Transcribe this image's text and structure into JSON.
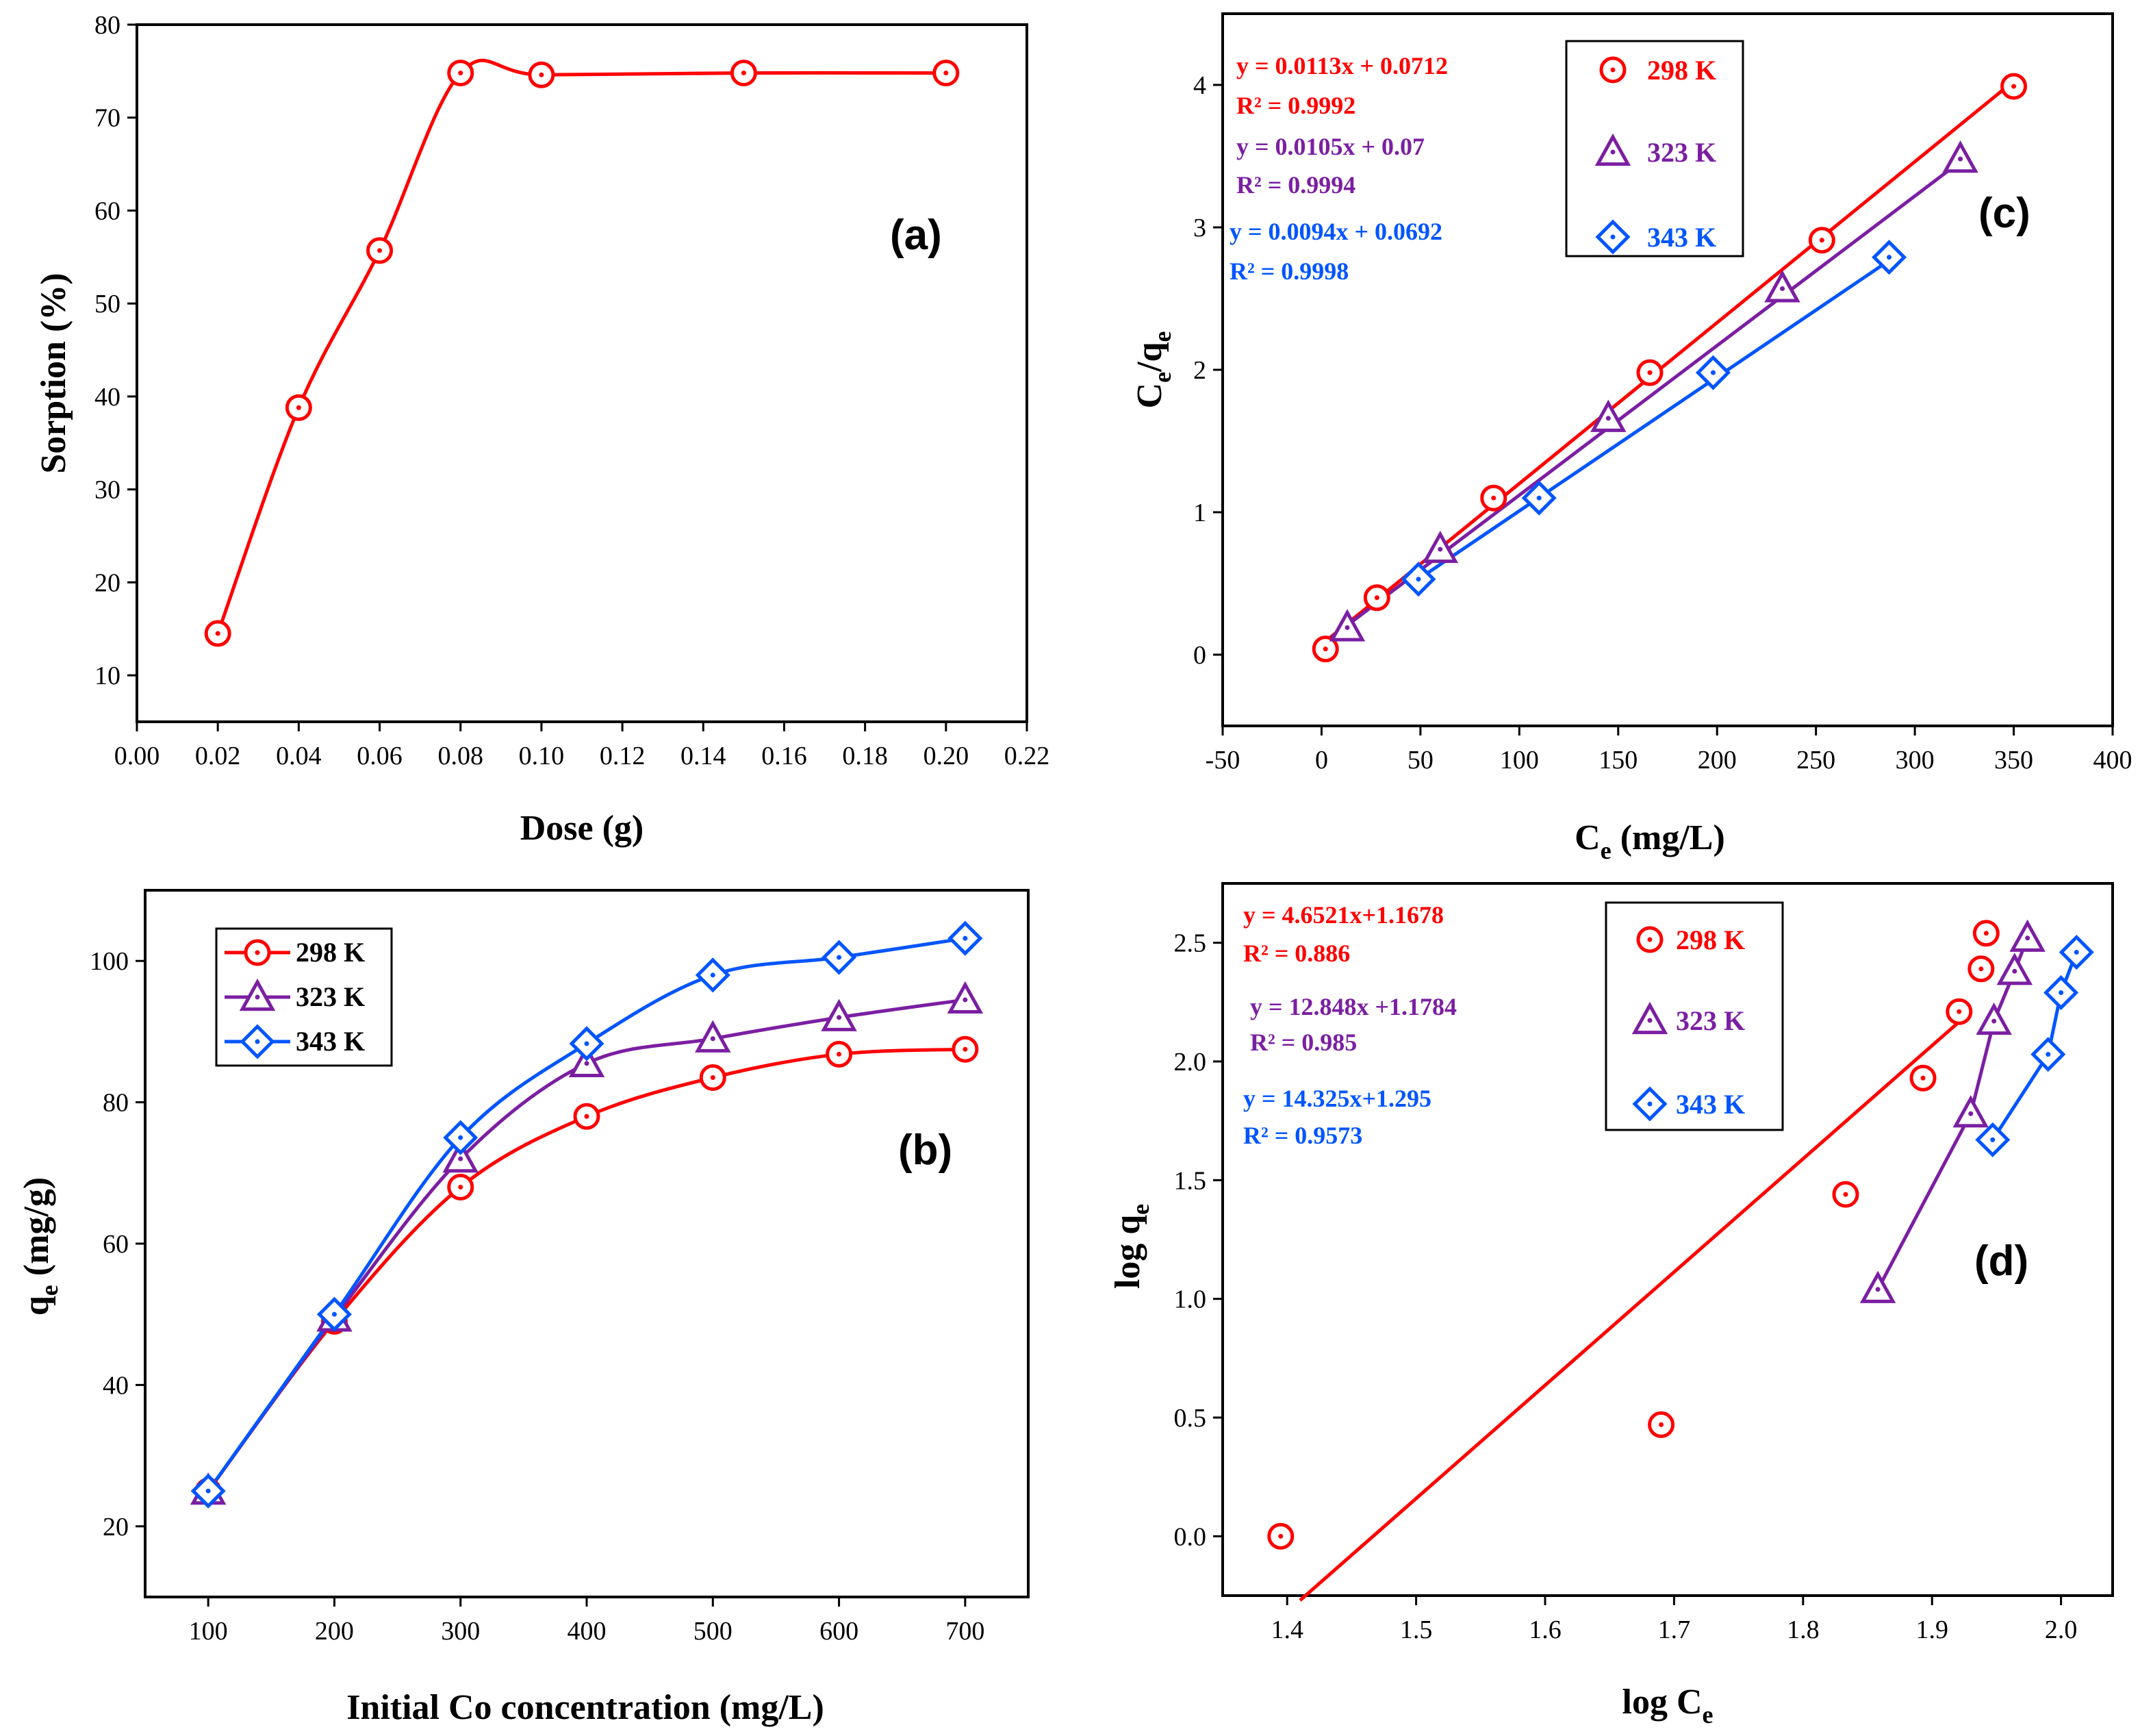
{
  "chart_data": [
    {
      "panel": "a",
      "type": "line",
      "panel_label": "(a)",
      "xlabel": "Dose (g)",
      "ylabel": "Sorption (%)",
      "xlim": [
        0.0,
        0.22
      ],
      "ylim": [
        5,
        80
      ],
      "x_ticks": [
        "0.00",
        "0.02",
        "0.04",
        "0.06",
        "0.08",
        "0.10",
        "0.12",
        "0.14",
        "0.16",
        "0.18",
        "0.20",
        "0.22"
      ],
      "y_ticks": [
        "10",
        "20",
        "30",
        "40",
        "50",
        "60",
        "70",
        "80"
      ],
      "color": "#ff0000",
      "series": [
        {
          "name": "Sorption",
          "x": [
            0.02,
            0.04,
            0.06,
            0.08,
            0.1,
            0.15,
            0.2
          ],
          "y": [
            14.5,
            38.8,
            55.7,
            74.8,
            74.6,
            74.8,
            74.8
          ]
        }
      ]
    },
    {
      "panel": "b",
      "type": "line",
      "panel_label": "(b)",
      "xlabel": "Initial Co concentration (mg/L)",
      "ylabel_main": "q",
      "ylabel_sub": "e",
      "ylabel_rest": " (mg/g)",
      "xlim": [
        50,
        750
      ],
      "ylim": [
        10,
        110
      ],
      "x_ticks": [
        "100",
        "200",
        "300",
        "400",
        "500",
        "600",
        "700"
      ],
      "y_ticks": [
        "20",
        "40",
        "60",
        "80",
        "100"
      ],
      "series": [
        {
          "name": "298 K",
          "marker": "circle",
          "color": "#ff0000",
          "x": [
            100,
            200,
            300,
            400,
            500,
            600,
            700
          ],
          "y": [
            25,
            49,
            68,
            78,
            83.5,
            86.8,
            87.5
          ]
        },
        {
          "name": "323 K",
          "marker": "triangle",
          "color": "#7b1fa2",
          "x": [
            100,
            200,
            300,
            400,
            500,
            600,
            700
          ],
          "y": [
            25,
            49.5,
            72,
            85.5,
            89,
            92,
            94.5
          ]
        },
        {
          "name": "343 K",
          "marker": "diamond",
          "color": "#0055ff",
          "x": [
            100,
            200,
            300,
            400,
            500,
            600,
            700
          ],
          "y": [
            25,
            50,
            75,
            88.3,
            98,
            100.5,
            103.2
          ]
        }
      ]
    },
    {
      "panel": "c",
      "type": "scatter",
      "panel_label": "(c)",
      "xlabel_main": "C",
      "xlabel_sub": "e",
      "xlabel_rest": " (mg/L)",
      "ylabel_main": "C",
      "ylabel_sub1": "e",
      "ylabel_mid": "/q",
      "ylabel_sub2": "e",
      "xlim": [
        -50,
        400
      ],
      "ylim": [
        -0.5,
        4.5
      ],
      "x_ticks": [
        "-50",
        "0",
        "50",
        "100",
        "150",
        "200",
        "250",
        "300",
        "350",
        "400"
      ],
      "y_ticks": [
        "0",
        "1",
        "2",
        "3",
        "4"
      ],
      "series": [
        {
          "name": "298 K",
          "marker": "circle",
          "color": "#ff0000",
          "equation": "y = 0.0113x + 0.0712",
          "r2": "R² = 0.9992",
          "x": [
            2,
            28,
            87,
            166,
            253,
            350
          ],
          "y": [
            0.04,
            0.4,
            1.1,
            1.98,
            2.91,
            3.99
          ],
          "fit": {
            "slope": 0.0113,
            "intercept": 0.0712,
            "xrange": [
              0,
              350
            ]
          }
        },
        {
          "name": "323 K",
          "marker": "triangle",
          "color": "#7b1fa2",
          "equation": "y = 0.0105x + 0.07",
          "r2": "R² = 0.9994",
          "x": [
            13,
            60,
            145,
            233,
            323
          ],
          "y": [
            0.19,
            0.74,
            1.66,
            2.57,
            3.48
          ],
          "fit": {
            "slope": 0.0105,
            "intercept": 0.07,
            "xrange": [
              0,
              323
            ]
          }
        },
        {
          "name": "343 K",
          "marker": "diamond",
          "color": "#0055ff",
          "equation": "y = 0.0094x + 0.0692",
          "r2": "R² = 0.9998",
          "x": [
            49,
            110,
            198,
            287
          ],
          "y": [
            0.53,
            1.1,
            1.98,
            2.79
          ],
          "fit": {
            "slope": 0.0094,
            "intercept": 0.0692,
            "xrange": [
              49,
              287
            ]
          }
        }
      ]
    },
    {
      "panel": "d",
      "type": "scatter",
      "panel_label": "(d)",
      "xlabel_main": "log C",
      "xlabel_sub": "e",
      "ylabel_main": "log q",
      "ylabel_sub": "e",
      "xlim": [
        1.35,
        2.04
      ],
      "ylim": [
        -0.25,
        2.75
      ],
      "x_ticks": [
        "1.4",
        "1.5",
        "1.6",
        "1.7",
        "1.8",
        "1.9",
        "2.0"
      ],
      "y_ticks": [
        "0.0",
        "0.5",
        "1.0",
        "1.5",
        "2.0",
        "2.5"
      ],
      "series": [
        {
          "name": "298 K",
          "marker": "circle",
          "color": "#ff0000",
          "equation": "y = 4.6521x+1.1678",
          "r2": "R² = 0.886",
          "x": [
            1.395,
            1.69,
            1.833,
            1.893,
            1.921,
            1.938,
            1.942
          ],
          "y": [
            0.0,
            0.47,
            1.44,
            1.93,
            2.21,
            2.39,
            2.54
          ],
          "fit_points": [
            [
              1.41,
              -0.27
            ],
            [
              1.93,
              2.21
            ]
          ]
        },
        {
          "name": "323 K",
          "marker": "triangle",
          "color": "#7b1fa2",
          "equation": "y = 12.848x +1.1784",
          "r2": "R² = 0.985",
          "x": [
            1.858,
            1.93,
            1.948,
            1.964,
            1.974
          ],
          "y": [
            1.04,
            1.78,
            2.17,
            2.38,
            2.52
          ],
          "fit_points": [
            [
              1.858,
              1.04
            ],
            [
              1.93,
              1.78
            ],
            [
              1.948,
              2.17
            ],
            [
              1.964,
              2.38
            ],
            [
              1.974,
              2.52
            ]
          ]
        },
        {
          "name": "343 K",
          "marker": "diamond",
          "color": "#0055ff",
          "equation": "y = 14.325x+1.295",
          "r2": "R² = 0.9573",
          "x": [
            1.947,
            1.99,
            2.0,
            2.012
          ],
          "y": [
            1.67,
            2.03,
            2.29,
            2.46
          ],
          "fit_points": [
            [
              1.947,
              1.67
            ],
            [
              1.99,
              2.03
            ],
            [
              2.0,
              2.29
            ],
            [
              2.012,
              2.46
            ]
          ]
        }
      ]
    }
  ]
}
